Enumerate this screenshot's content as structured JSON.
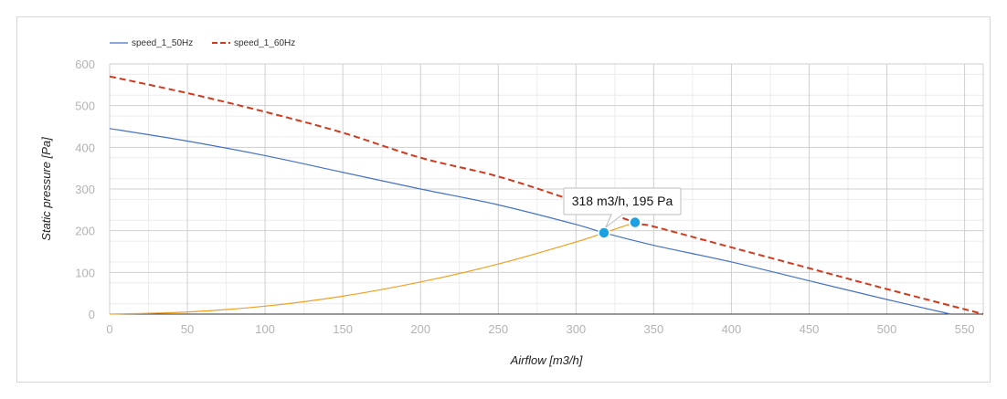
{
  "chart_data": {
    "type": "line",
    "xlabel": "Airflow [m3/h]",
    "ylabel": "Static pressure [Pa]",
    "xlim": [
      0,
      562
    ],
    "ylim": [
      0,
      600
    ],
    "x_ticks": [
      0,
      50,
      100,
      150,
      200,
      250,
      300,
      350,
      400,
      450,
      500,
      550
    ],
    "y_ticks": [
      0,
      100,
      200,
      300,
      400,
      500,
      600
    ],
    "grid": true,
    "legend_position": "top-left",
    "series": [
      {
        "name": "speed_1_50Hz",
        "color": "#4472c4",
        "style": "solid",
        "x": [
          0,
          50,
          100,
          150,
          200,
          250,
          300,
          318,
          350,
          400,
          450,
          500,
          541
        ],
        "y": [
          445,
          415,
          380,
          340,
          300,
          262,
          215,
          195,
          165,
          125,
          80,
          35,
          0
        ]
      },
      {
        "name": "speed_1_60Hz",
        "color": "#d03a1e",
        "style": "dashed",
        "x": [
          0,
          50,
          100,
          150,
          200,
          250,
          300,
          338,
          350,
          400,
          450,
          500,
          562
        ],
        "y": [
          570,
          530,
          485,
          435,
          375,
          330,
          270,
          220,
          210,
          160,
          110,
          60,
          0
        ]
      },
      {
        "color": "#f0a020",
        "style": "solid",
        "x": [
          0,
          50,
          100,
          150,
          200,
          250,
          300,
          318,
          338
        ],
        "y": [
          0,
          5,
          19,
          43,
          77,
          120,
          173,
          195,
          220
        ]
      }
    ],
    "markers": [
      {
        "x": 318,
        "y": 195,
        "color": "#1ba1e2"
      },
      {
        "x": 338,
        "y": 220,
        "color": "#1ba1e2"
      }
    ],
    "tooltip": {
      "text": "318 m3/h, 195 Pa"
    }
  }
}
